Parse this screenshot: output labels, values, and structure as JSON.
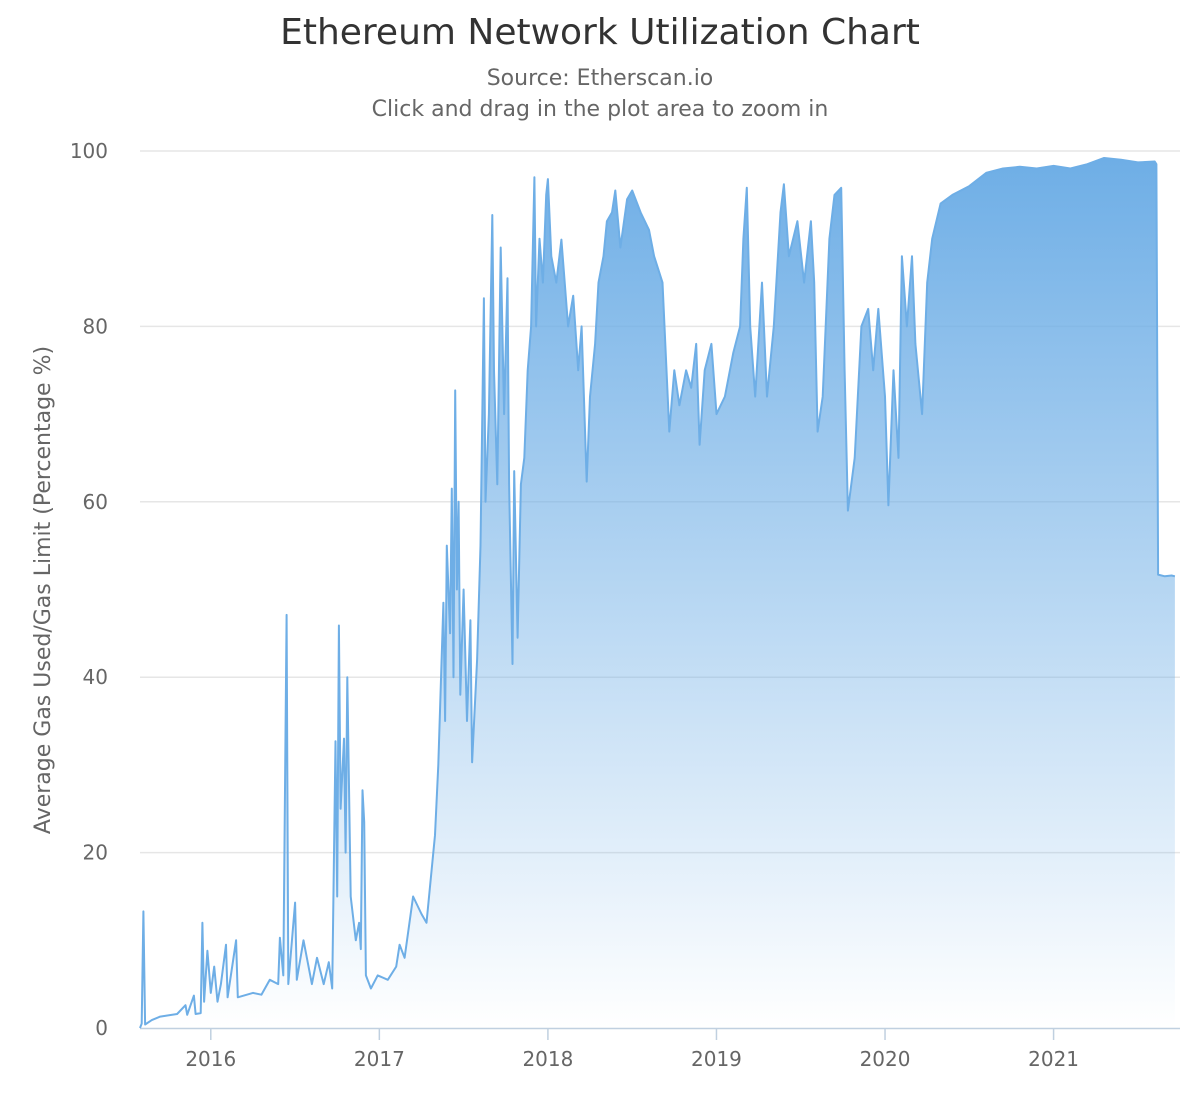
{
  "chart_data": {
    "type": "area",
    "title": "Ethereum Network Utilization Chart",
    "subtitle": "Source: Etherscan.io",
    "subtitle2": "Click and drag in the plot area to zoom in",
    "xlabel": "",
    "ylabel": "Average Gas Used/Gas Limit (Percentage %)",
    "xlim": [
      2015.58,
      2021.75
    ],
    "ylim": [
      0,
      100
    ],
    "yticks": [
      0,
      20,
      40,
      60,
      80,
      100
    ],
    "xticks": [
      {
        "label": "2016",
        "value": 2016.0
      },
      {
        "label": "2017",
        "value": 2017.0
      },
      {
        "label": "2018",
        "value": 2018.0
      },
      {
        "label": "2019",
        "value": 2019.0
      },
      {
        "label": "2020",
        "value": 2020.0
      },
      {
        "label": "2021",
        "value": 2021.0
      }
    ],
    "grid": true,
    "color": "#6eaee6",
    "series": [
      {
        "name": "Network Utilization",
        "points": [
          [
            2015.58,
            0
          ],
          [
            2015.59,
            0.5
          ],
          [
            2015.6,
            13.3
          ],
          [
            2015.61,
            0.4
          ],
          [
            2015.65,
            0.9
          ],
          [
            2015.7,
            1.3
          ],
          [
            2015.8,
            1.6
          ],
          [
            2015.85,
            2.6
          ],
          [
            2015.86,
            1.5
          ],
          [
            2015.9,
            3.7
          ],
          [
            2015.91,
            1.6
          ],
          [
            2015.94,
            1.7
          ],
          [
            2015.95,
            12.0
          ],
          [
            2015.96,
            3.0
          ],
          [
            2015.98,
            8.8
          ],
          [
            2016.0,
            4.0
          ],
          [
            2016.02,
            7.0
          ],
          [
            2016.04,
            3.0
          ],
          [
            2016.06,
            5.0
          ],
          [
            2016.09,
            9.5
          ],
          [
            2016.1,
            3.5
          ],
          [
            2016.15,
            10.0
          ],
          [
            2016.16,
            3.5
          ],
          [
            2016.25,
            4.0
          ],
          [
            2016.3,
            3.8
          ],
          [
            2016.35,
            5.5
          ],
          [
            2016.4,
            5.0
          ],
          [
            2016.41,
            10.3
          ],
          [
            2016.43,
            6.0
          ],
          [
            2016.45,
            47.1
          ],
          [
            2016.46,
            5.0
          ],
          [
            2016.5,
            14.3
          ],
          [
            2016.51,
            5.5
          ],
          [
            2016.55,
            10.0
          ],
          [
            2016.6,
            5.0
          ],
          [
            2016.63,
            8.0
          ],
          [
            2016.67,
            5.0
          ],
          [
            2016.7,
            7.5
          ],
          [
            2016.72,
            4.5
          ],
          [
            2016.74,
            32.7
          ],
          [
            2016.75,
            15.0
          ],
          [
            2016.76,
            45.9
          ],
          [
            2016.77,
            25.0
          ],
          [
            2016.79,
            33.0
          ],
          [
            2016.8,
            20.0
          ],
          [
            2016.81,
            40.0
          ],
          [
            2016.83,
            15.0
          ],
          [
            2016.86,
            10.0
          ],
          [
            2016.88,
            12.0
          ],
          [
            2016.89,
            9.0
          ],
          [
            2016.9,
            27.1
          ],
          [
            2016.91,
            23.5
          ],
          [
            2016.92,
            6.0
          ],
          [
            2016.95,
            4.5
          ],
          [
            2016.99,
            6.0
          ],
          [
            2017.05,
            5.5
          ],
          [
            2017.1,
            7.0
          ],
          [
            2017.12,
            9.5
          ],
          [
            2017.15,
            8.0
          ],
          [
            2017.2,
            15.0
          ],
          [
            2017.25,
            13.0
          ],
          [
            2017.28,
            12.0
          ],
          [
            2017.3,
            16.0
          ],
          [
            2017.33,
            22.0
          ],
          [
            2017.35,
            30.0
          ],
          [
            2017.38,
            48.5
          ],
          [
            2017.39,
            35.0
          ],
          [
            2017.4,
            55.0
          ],
          [
            2017.42,
            45.0
          ],
          [
            2017.43,
            61.5
          ],
          [
            2017.44,
            40.0
          ],
          [
            2017.45,
            72.7
          ],
          [
            2017.46,
            50.0
          ],
          [
            2017.47,
            60.0
          ],
          [
            2017.48,
            38.0
          ],
          [
            2017.5,
            50.0
          ],
          [
            2017.52,
            35.0
          ],
          [
            2017.54,
            46.5
          ],
          [
            2017.55,
            30.3
          ],
          [
            2017.58,
            42.0
          ],
          [
            2017.6,
            55.0
          ],
          [
            2017.62,
            83.2
          ],
          [
            2017.63,
            60.0
          ],
          [
            2017.65,
            70.0
          ],
          [
            2017.67,
            92.7
          ],
          [
            2017.68,
            75.0
          ],
          [
            2017.7,
            62.0
          ],
          [
            2017.72,
            89.0
          ],
          [
            2017.74,
            70.0
          ],
          [
            2017.76,
            85.5
          ],
          [
            2017.77,
            62.0
          ],
          [
            2017.79,
            41.5
          ],
          [
            2017.8,
            63.5
          ],
          [
            2017.82,
            44.5
          ],
          [
            2017.84,
            62.0
          ],
          [
            2017.86,
            65.0
          ],
          [
            2017.88,
            75.0
          ],
          [
            2017.9,
            80.0
          ],
          [
            2017.92,
            97.0
          ],
          [
            2017.93,
            80.0
          ],
          [
            2017.95,
            90.0
          ],
          [
            2017.97,
            85.0
          ],
          [
            2017.99,
            95.0
          ],
          [
            2018.0,
            96.8
          ],
          [
            2018.02,
            88.0
          ],
          [
            2018.05,
            85.0
          ],
          [
            2018.08,
            89.9
          ],
          [
            2018.12,
            80.0
          ],
          [
            2018.15,
            83.5
          ],
          [
            2018.18,
            75.0
          ],
          [
            2018.2,
            80.0
          ],
          [
            2018.23,
            62.3
          ],
          [
            2018.25,
            72.0
          ],
          [
            2018.28,
            78.0
          ],
          [
            2018.3,
            85.0
          ],
          [
            2018.33,
            88.0
          ],
          [
            2018.35,
            92.0
          ],
          [
            2018.38,
            93.0
          ],
          [
            2018.4,
            95.5
          ],
          [
            2018.43,
            89.0
          ],
          [
            2018.47,
            94.5
          ],
          [
            2018.5,
            95.5
          ],
          [
            2018.55,
            93.0
          ],
          [
            2018.6,
            91.0
          ],
          [
            2018.63,
            88.0
          ],
          [
            2018.68,
            85.0
          ],
          [
            2018.72,
            68.0
          ],
          [
            2018.75,
            75.0
          ],
          [
            2018.78,
            71.0
          ],
          [
            2018.82,
            75.0
          ],
          [
            2018.85,
            73.0
          ],
          [
            2018.88,
            78.0
          ],
          [
            2018.9,
            66.5
          ],
          [
            2018.93,
            75.0
          ],
          [
            2018.97,
            78.0
          ],
          [
            2019.0,
            70.0
          ],
          [
            2019.05,
            72.0
          ],
          [
            2019.1,
            77.0
          ],
          [
            2019.14,
            80.0
          ],
          [
            2019.16,
            90.0
          ],
          [
            2019.18,
            95.8
          ],
          [
            2019.2,
            80.0
          ],
          [
            2019.23,
            72.0
          ],
          [
            2019.27,
            85.0
          ],
          [
            2019.3,
            72.0
          ],
          [
            2019.34,
            80.0
          ],
          [
            2019.38,
            93.0
          ],
          [
            2019.4,
            96.2
          ],
          [
            2019.43,
            88.0
          ],
          [
            2019.48,
            92.0
          ],
          [
            2019.52,
            85.0
          ],
          [
            2019.56,
            92.0
          ],
          [
            2019.58,
            85.0
          ],
          [
            2019.6,
            68.0
          ],
          [
            2019.63,
            72.0
          ],
          [
            2019.67,
            90.0
          ],
          [
            2019.7,
            95.0
          ],
          [
            2019.74,
            95.8
          ],
          [
            2019.76,
            75.0
          ],
          [
            2019.78,
            59.0
          ],
          [
            2019.82,
            65.0
          ],
          [
            2019.86,
            80.0
          ],
          [
            2019.9,
            82.0
          ],
          [
            2019.93,
            75.0
          ],
          [
            2019.96,
            82.0
          ],
          [
            2020.0,
            72.0
          ],
          [
            2020.02,
            59.6
          ],
          [
            2020.05,
            75.0
          ],
          [
            2020.08,
            65.0
          ],
          [
            2020.1,
            88.0
          ],
          [
            2020.13,
            80.0
          ],
          [
            2020.16,
            88.0
          ],
          [
            2020.18,
            78.0
          ],
          [
            2020.22,
            70.0
          ],
          [
            2020.25,
            85.0
          ],
          [
            2020.28,
            90.0
          ],
          [
            2020.33,
            94.0
          ],
          [
            2020.4,
            95.0
          ],
          [
            2020.5,
            96.0
          ],
          [
            2020.6,
            97.5
          ],
          [
            2020.7,
            98.0
          ],
          [
            2020.8,
            98.2
          ],
          [
            2020.9,
            98.0
          ],
          [
            2021.0,
            98.3
          ],
          [
            2021.1,
            98.0
          ],
          [
            2021.2,
            98.5
          ],
          [
            2021.3,
            99.2
          ],
          [
            2021.4,
            99.0
          ],
          [
            2021.5,
            98.7
          ],
          [
            2021.6,
            98.8
          ],
          [
            2021.61,
            98.5
          ],
          [
            2021.62,
            51.7
          ],
          [
            2021.66,
            51.5
          ],
          [
            2021.7,
            51.6
          ],
          [
            2021.72,
            51.5
          ]
        ]
      }
    ]
  }
}
